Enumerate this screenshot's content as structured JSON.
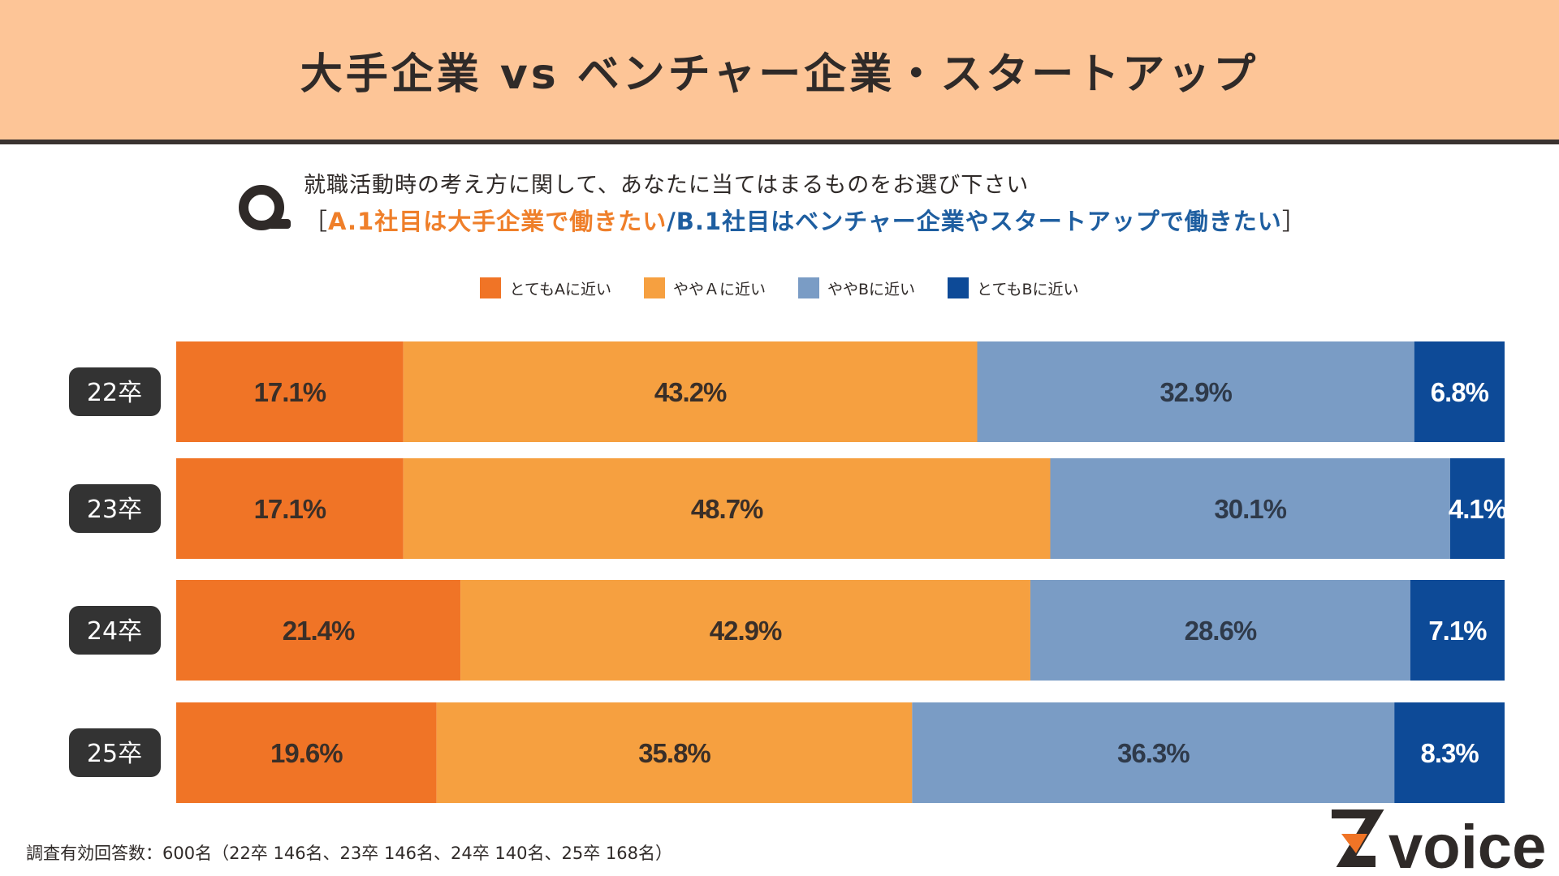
{
  "header": {
    "title": "大手企業 vs ベンチャー企業・スタートアップ"
  },
  "question": {
    "line1": "就職活動時の考え方に関して、あなたに当てはまるものをお選び下さい",
    "open_bracket": "［",
    "option_a": "A.1社目は大手企業で働きたい",
    "slash": "/",
    "option_b": "B.1社目はベンチャー企業やスタートアップで働きたい",
    "close_bracket": "］"
  },
  "colors": {
    "very_a": "#f07426",
    "somewhat_a": "#f6a040",
    "somewhat_b": "#7a9cc5",
    "very_b": "#0d4a97",
    "row_label_bg": "#333333",
    "header_bg": "#fdc597"
  },
  "chart_data": {
    "type": "bar",
    "orientation": "horizontal-stacked-100",
    "categories": [
      "22卒",
      "23卒",
      "24卒",
      "25卒"
    ],
    "series": [
      {
        "name": "とてもAに近い",
        "values": [
          17.1,
          17.1,
          21.4,
          19.6
        ],
        "labels": [
          "17.1%",
          "17.1%",
          "21.4%",
          "19.6%"
        ]
      },
      {
        "name": "ややＡに近い",
        "values": [
          43.2,
          48.7,
          42.9,
          35.8
        ],
        "labels": [
          "43.2%",
          "48.7%",
          "42.9%",
          "35.8%"
        ]
      },
      {
        "name": "ややBに近い",
        "values": [
          32.9,
          30.1,
          28.6,
          36.3
        ],
        "labels": [
          "32.9%",
          "30.1%",
          "28.6%",
          "36.3%"
        ]
      },
      {
        "name": "とてもBに近い",
        "values": [
          6.8,
          4.1,
          7.1,
          8.3
        ],
        "labels": [
          "6.8%",
          "4.1%",
          "7.1%",
          "8.3%"
        ]
      }
    ],
    "xlim": [
      0,
      100
    ],
    "legend": "top-center"
  },
  "footer": {
    "note": "調査有効回答数：600名（22卒 146名、23卒 146名、24卒 140名、25卒 168名）"
  },
  "logo": {
    "letter": "Z",
    "text": "voice",
    "icon": "z-voice-logo"
  }
}
